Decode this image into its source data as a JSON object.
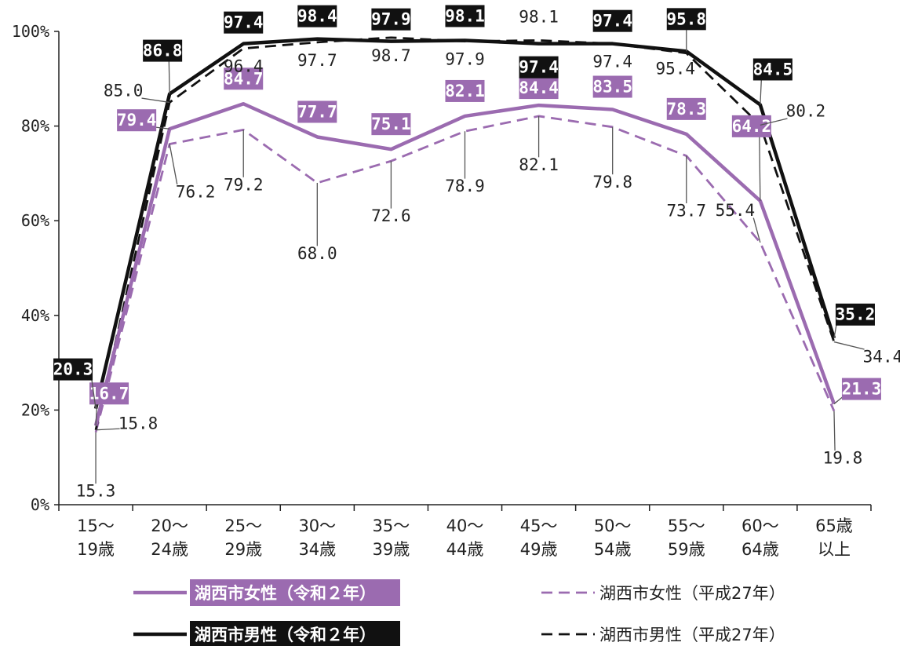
{
  "chart_data": {
    "type": "line",
    "categories": [
      [
        "15～",
        "19歳"
      ],
      [
        "20～",
        "24歳"
      ],
      [
        "25～",
        "29歳"
      ],
      [
        "30～",
        "34歳"
      ],
      [
        "35～",
        "39歳"
      ],
      [
        "40～",
        "44歳"
      ],
      [
        "45～",
        "49歳"
      ],
      [
        "50～",
        "54歳"
      ],
      [
        "55～",
        "59歳"
      ],
      [
        "60～",
        "64歳"
      ],
      [
        "65歳",
        "以上"
      ]
    ],
    "ylim": [
      0,
      100
    ],
    "yticks": [
      "0%",
      "20%",
      "40%",
      "60%",
      "80%",
      "100%"
    ],
    "ytick_values": [
      0,
      20,
      40,
      60,
      80,
      100
    ],
    "legend_placement": "bottom",
    "series": [
      {
        "name": "湖西市女性（令和２年）",
        "color": "#9b6bb0",
        "style": "solid",
        "boxed": true,
        "values": [
          16.7,
          79.4,
          84.7,
          77.7,
          75.1,
          82.1,
          84.4,
          83.5,
          78.3,
          64.2,
          21.3
        ],
        "labels": [
          "16.7",
          "79.4",
          "84.7",
          "77.7",
          "75.1",
          "82.1",
          "84.4",
          "83.5",
          "78.3",
          "64.2",
          "21.3"
        ]
      },
      {
        "name": "湖西市女性（平成27年）",
        "color": "#9b6bb0",
        "style": "dashed",
        "boxed": false,
        "values": [
          15.3,
          76.2,
          79.2,
          68.0,
          72.6,
          78.9,
          82.1,
          79.8,
          73.7,
          55.4,
          19.8
        ],
        "labels": [
          "15.3",
          "76.2",
          "79.2",
          "68.0",
          "72.6",
          "78.9",
          "82.1",
          "79.8",
          "73.7",
          "55.4",
          "19.8"
        ]
      },
      {
        "name": "湖西市男性（令和２年）",
        "color": "#111111",
        "style": "solid",
        "boxed": true,
        "values": [
          20.3,
          86.8,
          97.4,
          98.4,
          97.9,
          98.1,
          97.4,
          97.4,
          95.8,
          84.5,
          35.2
        ],
        "labels": [
          "20.3",
          "86.8",
          "97.4",
          "98.4",
          "97.9",
          "98.1",
          "97.4",
          "97.4",
          "95.8",
          "84.5",
          "35.2"
        ]
      },
      {
        "name": "湖西市男性（平成27年）",
        "color": "#111111",
        "style": "dashed",
        "boxed": false,
        "values": [
          15.8,
          85.0,
          96.4,
          97.7,
          98.7,
          97.9,
          98.1,
          97.4,
          95.4,
          80.2,
          34.4
        ],
        "labels": [
          "15.8",
          "85.0",
          "96.4",
          "97.7",
          "98.7",
          "97.9",
          "98.1",
          "97.4",
          "95.4",
          "80.2",
          "34.4"
        ]
      }
    ]
  }
}
